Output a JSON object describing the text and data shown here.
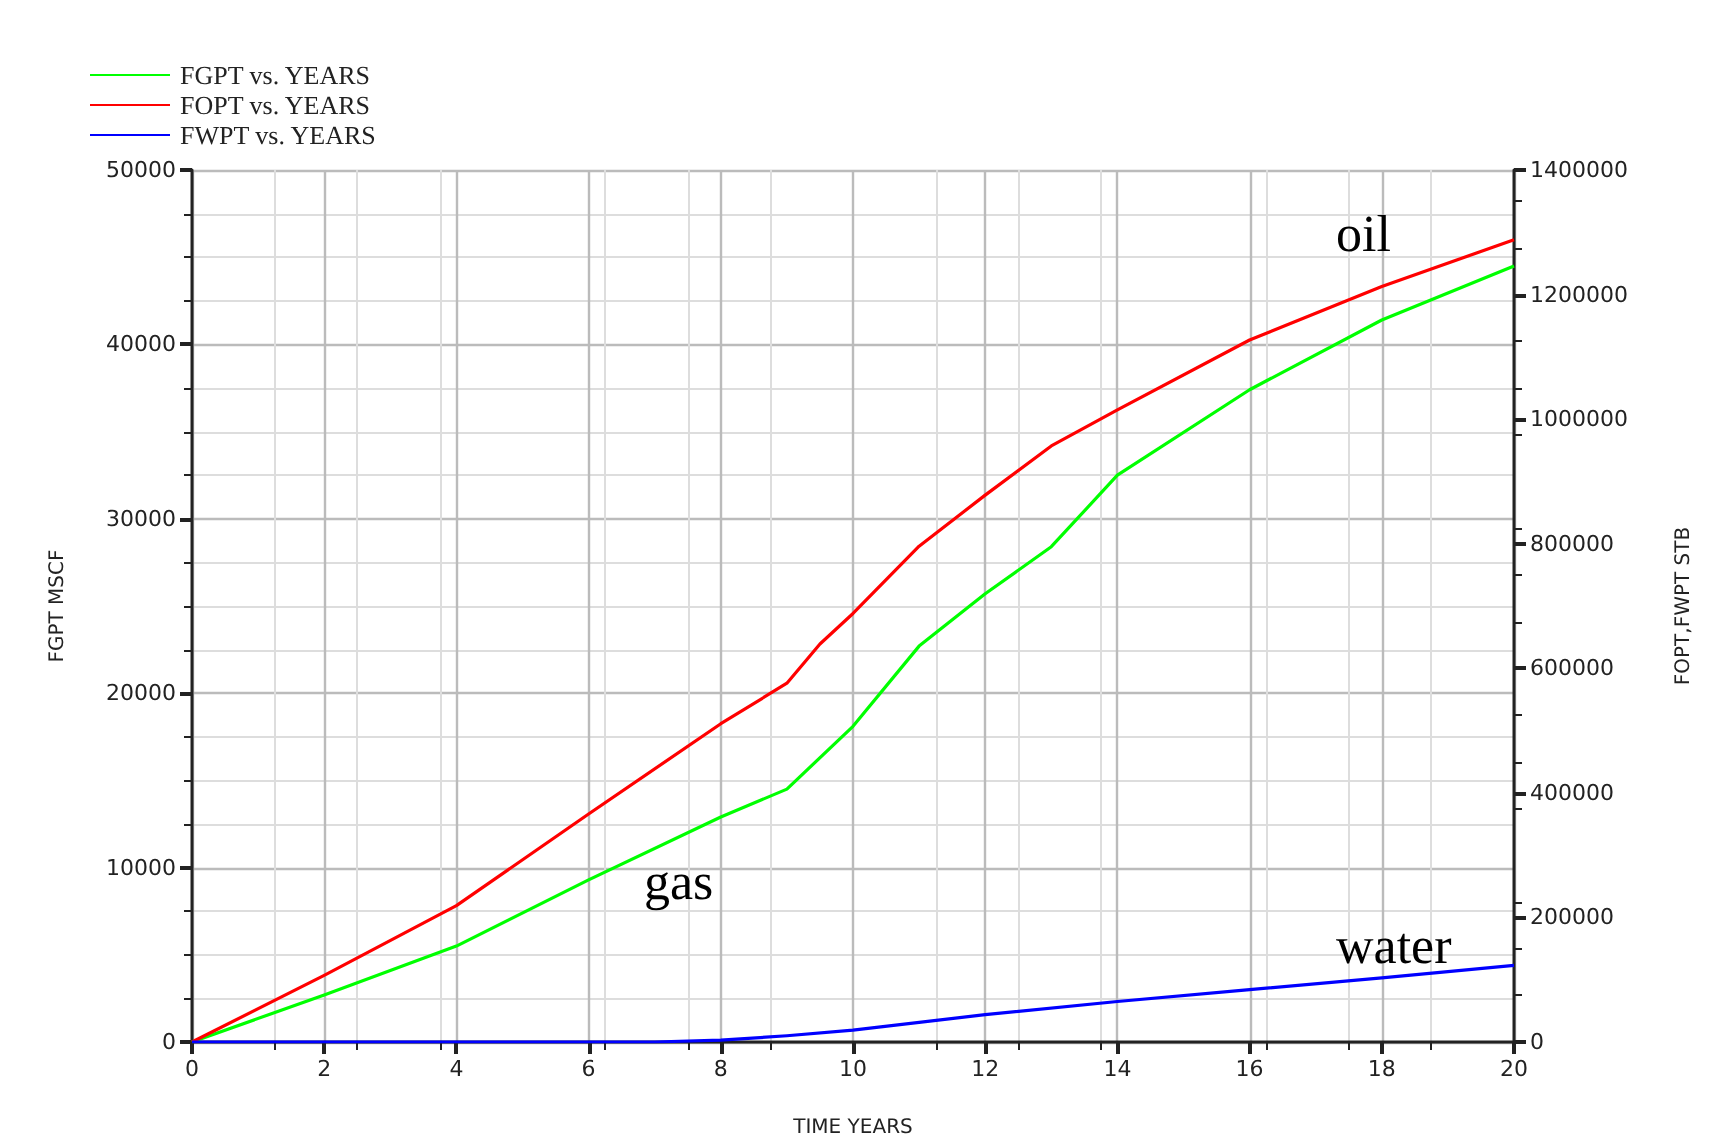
{
  "chart_data": {
    "type": "line",
    "xlabel": "TIME YEARS",
    "ylabel": "FGPT MSCF",
    "y2label": "FOPT,FWPT STB",
    "xlim": [
      0,
      20
    ],
    "xticks": [
      0,
      2,
      4,
      6,
      8,
      10,
      12,
      14,
      16,
      18,
      20
    ],
    "ylim": [
      0,
      50000
    ],
    "yticks": [
      0,
      10000,
      20000,
      30000,
      40000,
      50000
    ],
    "y2lim": [
      0,
      1400000
    ],
    "y2ticks": [
      0,
      200000,
      400000,
      600000,
      800000,
      1000000,
      1200000,
      1400000
    ],
    "grid": true,
    "legend": "top left",
    "marker": "none",
    "line_style": "solid",
    "annotations": [
      "oil",
      "gas",
      "water"
    ],
    "series": [
      {
        "name": "FGPT vs. YEARS",
        "color": "#00ff00",
        "x": [
          0,
          2,
          4,
          6,
          8,
          9,
          10,
          11,
          12,
          13,
          14,
          16,
          18,
          20
        ],
        "values": [
          0,
          2700,
          5500,
          9300,
          12900,
          14500,
          18100,
          22700,
          25700,
          28400,
          32500,
          37400,
          41400,
          44500
        ]
      },
      {
        "name": "FOPT vs. YEARS",
        "color": "#ff0000",
        "axis": "y2",
        "x": [
          0,
          2,
          4,
          6,
          8,
          9,
          9.5,
          10,
          11,
          12,
          13,
          14,
          16,
          18,
          20
        ],
        "values": [
          0,
          107000,
          219000,
          366000,
          511000,
          576000,
          639000,
          688000,
          796000,
          878000,
          957000,
          1015000,
          1127000,
          1213000,
          1288000
        ]
      },
      {
        "name": "FWPT vs. YEARS",
        "color": "#0000ff",
        "axis": "y2",
        "x": [
          0,
          7,
          8,
          9,
          10,
          12,
          14,
          16,
          18,
          20
        ],
        "values": [
          0,
          0,
          3000,
          10000,
          19000,
          44000,
          65000,
          84000,
          103000,
          123000
        ]
      }
    ]
  }
}
